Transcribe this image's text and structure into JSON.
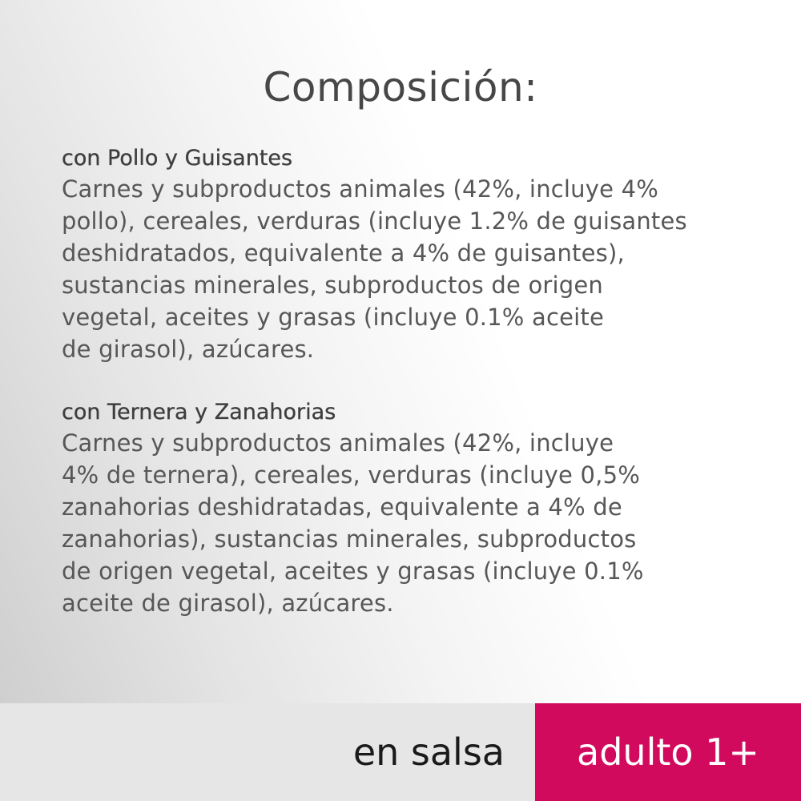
{
  "title": "Composición:",
  "sections": [
    {
      "heading": "con Pollo y Guisantes",
      "lines": [
        "Carnes y subproductos animales (42%, incluye 4%",
        "pollo), cereales, verduras (incluye 1.2% de guisantes",
        "deshidratados, equivalente a 4% de guisantes),",
        "sustancias minerales, subproductos de origen",
        "vegetal, aceites y grasas (incluye 0.1% aceite",
        "de girasol), azúcares."
      ]
    },
    {
      "heading": "con Ternera y Zanahorias",
      "lines": [
        "Carnes y subproductos animales (42%, incluye",
        "4% de ternera), cereales, verduras (incluye 0,5%",
        "zanahorias deshidratadas, equivalente a 4% de",
        "zanahorias), sustancias minerales, subproductos",
        "de origen vegetal, aceites y grasas (incluye 0.1%",
        "aceite de girasol), azúcares."
      ]
    }
  ],
  "footer": {
    "left_label": "en salsa",
    "right_label": "adulto 1+"
  },
  "colors": {
    "accent": "#d20a5d",
    "footer_bg": "#e6e6e6",
    "text": "#575757"
  }
}
